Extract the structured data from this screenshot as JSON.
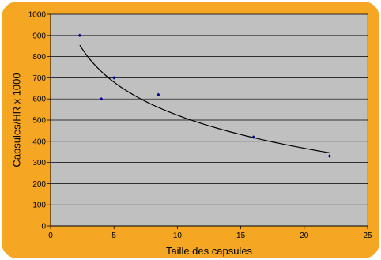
{
  "chart_data": {
    "type": "scatter",
    "xlabel": "Taille des capsules",
    "ylabel": "Capsules/HR x 1000",
    "xlim": [
      0,
      25
    ],
    "ylim": [
      0,
      1000
    ],
    "xticks": [
      0,
      5,
      10,
      15,
      20,
      25
    ],
    "yticks": [
      0,
      100,
      200,
      300,
      400,
      500,
      600,
      700,
      800,
      900,
      1000
    ],
    "grid": "horizontal",
    "legend": "none",
    "series": [
      {
        "points": [
          {
            "x": 2.3,
            "y": 900
          },
          {
            "x": 4.0,
            "y": 600
          },
          {
            "x": 5.0,
            "y": 700
          },
          {
            "x": 8.5,
            "y": 620
          },
          {
            "x": 16.0,
            "y": 420
          },
          {
            "x": 22.0,
            "y": 330
          }
        ]
      }
    ],
    "trendline": {
      "type": "logarithmic",
      "a": -225.3,
      "b": 1042,
      "x_range": [
        2.3,
        22.0
      ]
    },
    "colors": {
      "frame": "#F5A623",
      "plot_area": "#C0C0C0",
      "points": "#00008B",
      "trendline": "#000000",
      "gridlines": "#000000"
    }
  }
}
